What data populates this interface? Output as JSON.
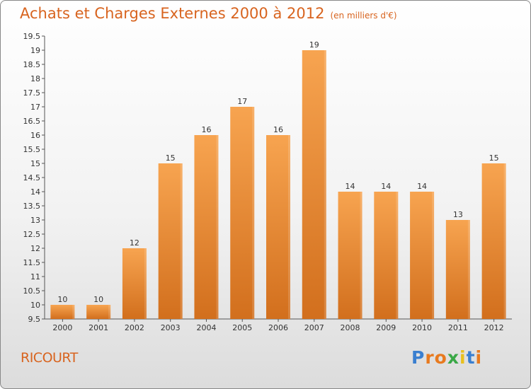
{
  "header": {
    "title": "Achats et Charges Externes 2000 à 2012",
    "unit": "(en milliers d'€)"
  },
  "footer": {
    "place": "RICOURT",
    "logo_letters": [
      "P",
      "r",
      "o",
      "x",
      "i",
      "t",
      "i"
    ]
  },
  "colors": {
    "bar_light": "#f7a450",
    "bar_dark": "#d26f1d",
    "text_accent": "#d8641f",
    "logo": [
      "#3a7fd0",
      "#e87a1f",
      "#e87a1f",
      "#3aa847",
      "#e8c01f",
      "#3a7fd0",
      "#e87a1f"
    ]
  },
  "chart_data": {
    "type": "bar",
    "categories": [
      "2000",
      "2001",
      "2002",
      "2003",
      "2004",
      "2005",
      "2006",
      "2007",
      "2008",
      "2009",
      "2010",
      "2011",
      "2012"
    ],
    "values": [
      10,
      10,
      12,
      15,
      16,
      17,
      16,
      19,
      14,
      14,
      14,
      13,
      15
    ],
    "ylim": [
      9.5,
      19.5
    ],
    "yticks": [
      "9.5",
      "10",
      "10.5",
      "11",
      "11.5",
      "12",
      "12.5",
      "13",
      "13.5",
      "14",
      "14.5",
      "15",
      "15.5",
      "16",
      "16.5",
      "17",
      "17.5",
      "18",
      "18.5",
      "19",
      "19.5"
    ],
    "grid": false,
    "legend": "none"
  }
}
